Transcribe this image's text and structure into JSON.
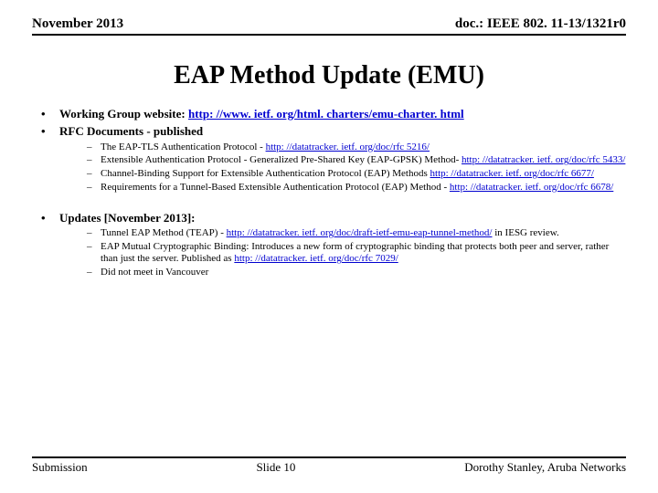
{
  "header": {
    "left": "November 2013",
    "right": "doc.: IEEE 802. 11-13/1321r0"
  },
  "title": "EAP Method Update (EMU)",
  "bullets": {
    "website_label": "Working Group website: ",
    "website_link": "http: //www. ietf. org/html. charters/emu-charter. html",
    "rfc_label": "RFC Documents - published",
    "rfc_items": {
      "i1_pre": "The EAP-TLS Authentication Protocol - ",
      "i1_link": "http: //datatracker. ietf. org/doc/rfc 5216/",
      "i2_pre": "Extensible Authentication Protocol - Generalized Pre-Shared Key (EAP-GPSK) Method- ",
      "i2_link": "http: //datatracker. ietf. org/doc/rfc 5433/",
      "i3_pre": "Channel-Binding Support for Extensible Authentication Protocol (EAP) Methods ",
      "i3_link": "http: //datatracker. ietf. org/doc/rfc 6677/",
      "i4_pre": "Requirements for a Tunnel-Based Extensible Authentication Protocol (EAP) Method - ",
      "i4_link": "http: //datatracker. ietf. org/doc/rfc 6678/"
    },
    "updates_label": "Updates [November 2013]:",
    "updates_items": {
      "u1_pre": "Tunnel EAP Method (TEAP) - ",
      "u1_link": "http: //datatracker. ietf. org/doc/draft-ietf-emu-eap-tunnel-method/",
      "u1_post": " in IESG review.",
      "u2_pre": "EAP Mutual Cryptographic Binding: Introduces a new form of cryptographic binding that protects both peer and server, rather than just the server. Published as ",
      "u2_link": "http: //datatracker. ietf. org/doc/rfc 7029/",
      "u3": "Did not meet in Vancouver"
    }
  },
  "footer": {
    "left": "Submission",
    "center": "Slide 10",
    "right": "Dorothy Stanley, Aruba Networks"
  }
}
